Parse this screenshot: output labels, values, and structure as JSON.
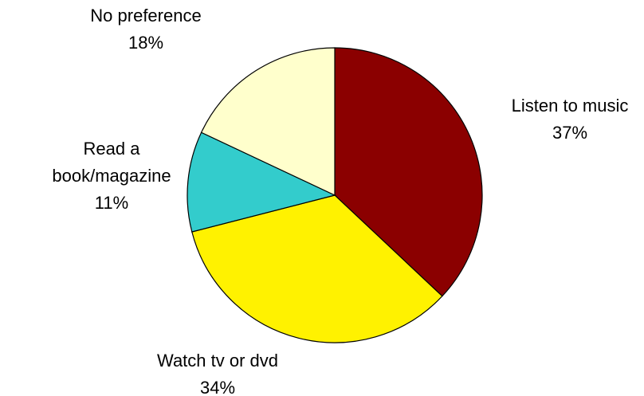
{
  "chart_data": {
    "type": "pie",
    "categories": [
      "Listen to music",
      "Watch tv or dvd",
      "Read a book/magazine",
      "No preference"
    ],
    "values": [
      37,
      34,
      11,
      18
    ],
    "value_labels": [
      "37%",
      "34%",
      "11%",
      "18%"
    ],
    "colors": [
      "#8b0000",
      "#fff200",
      "#33cccc",
      "#ffffcc"
    ]
  }
}
